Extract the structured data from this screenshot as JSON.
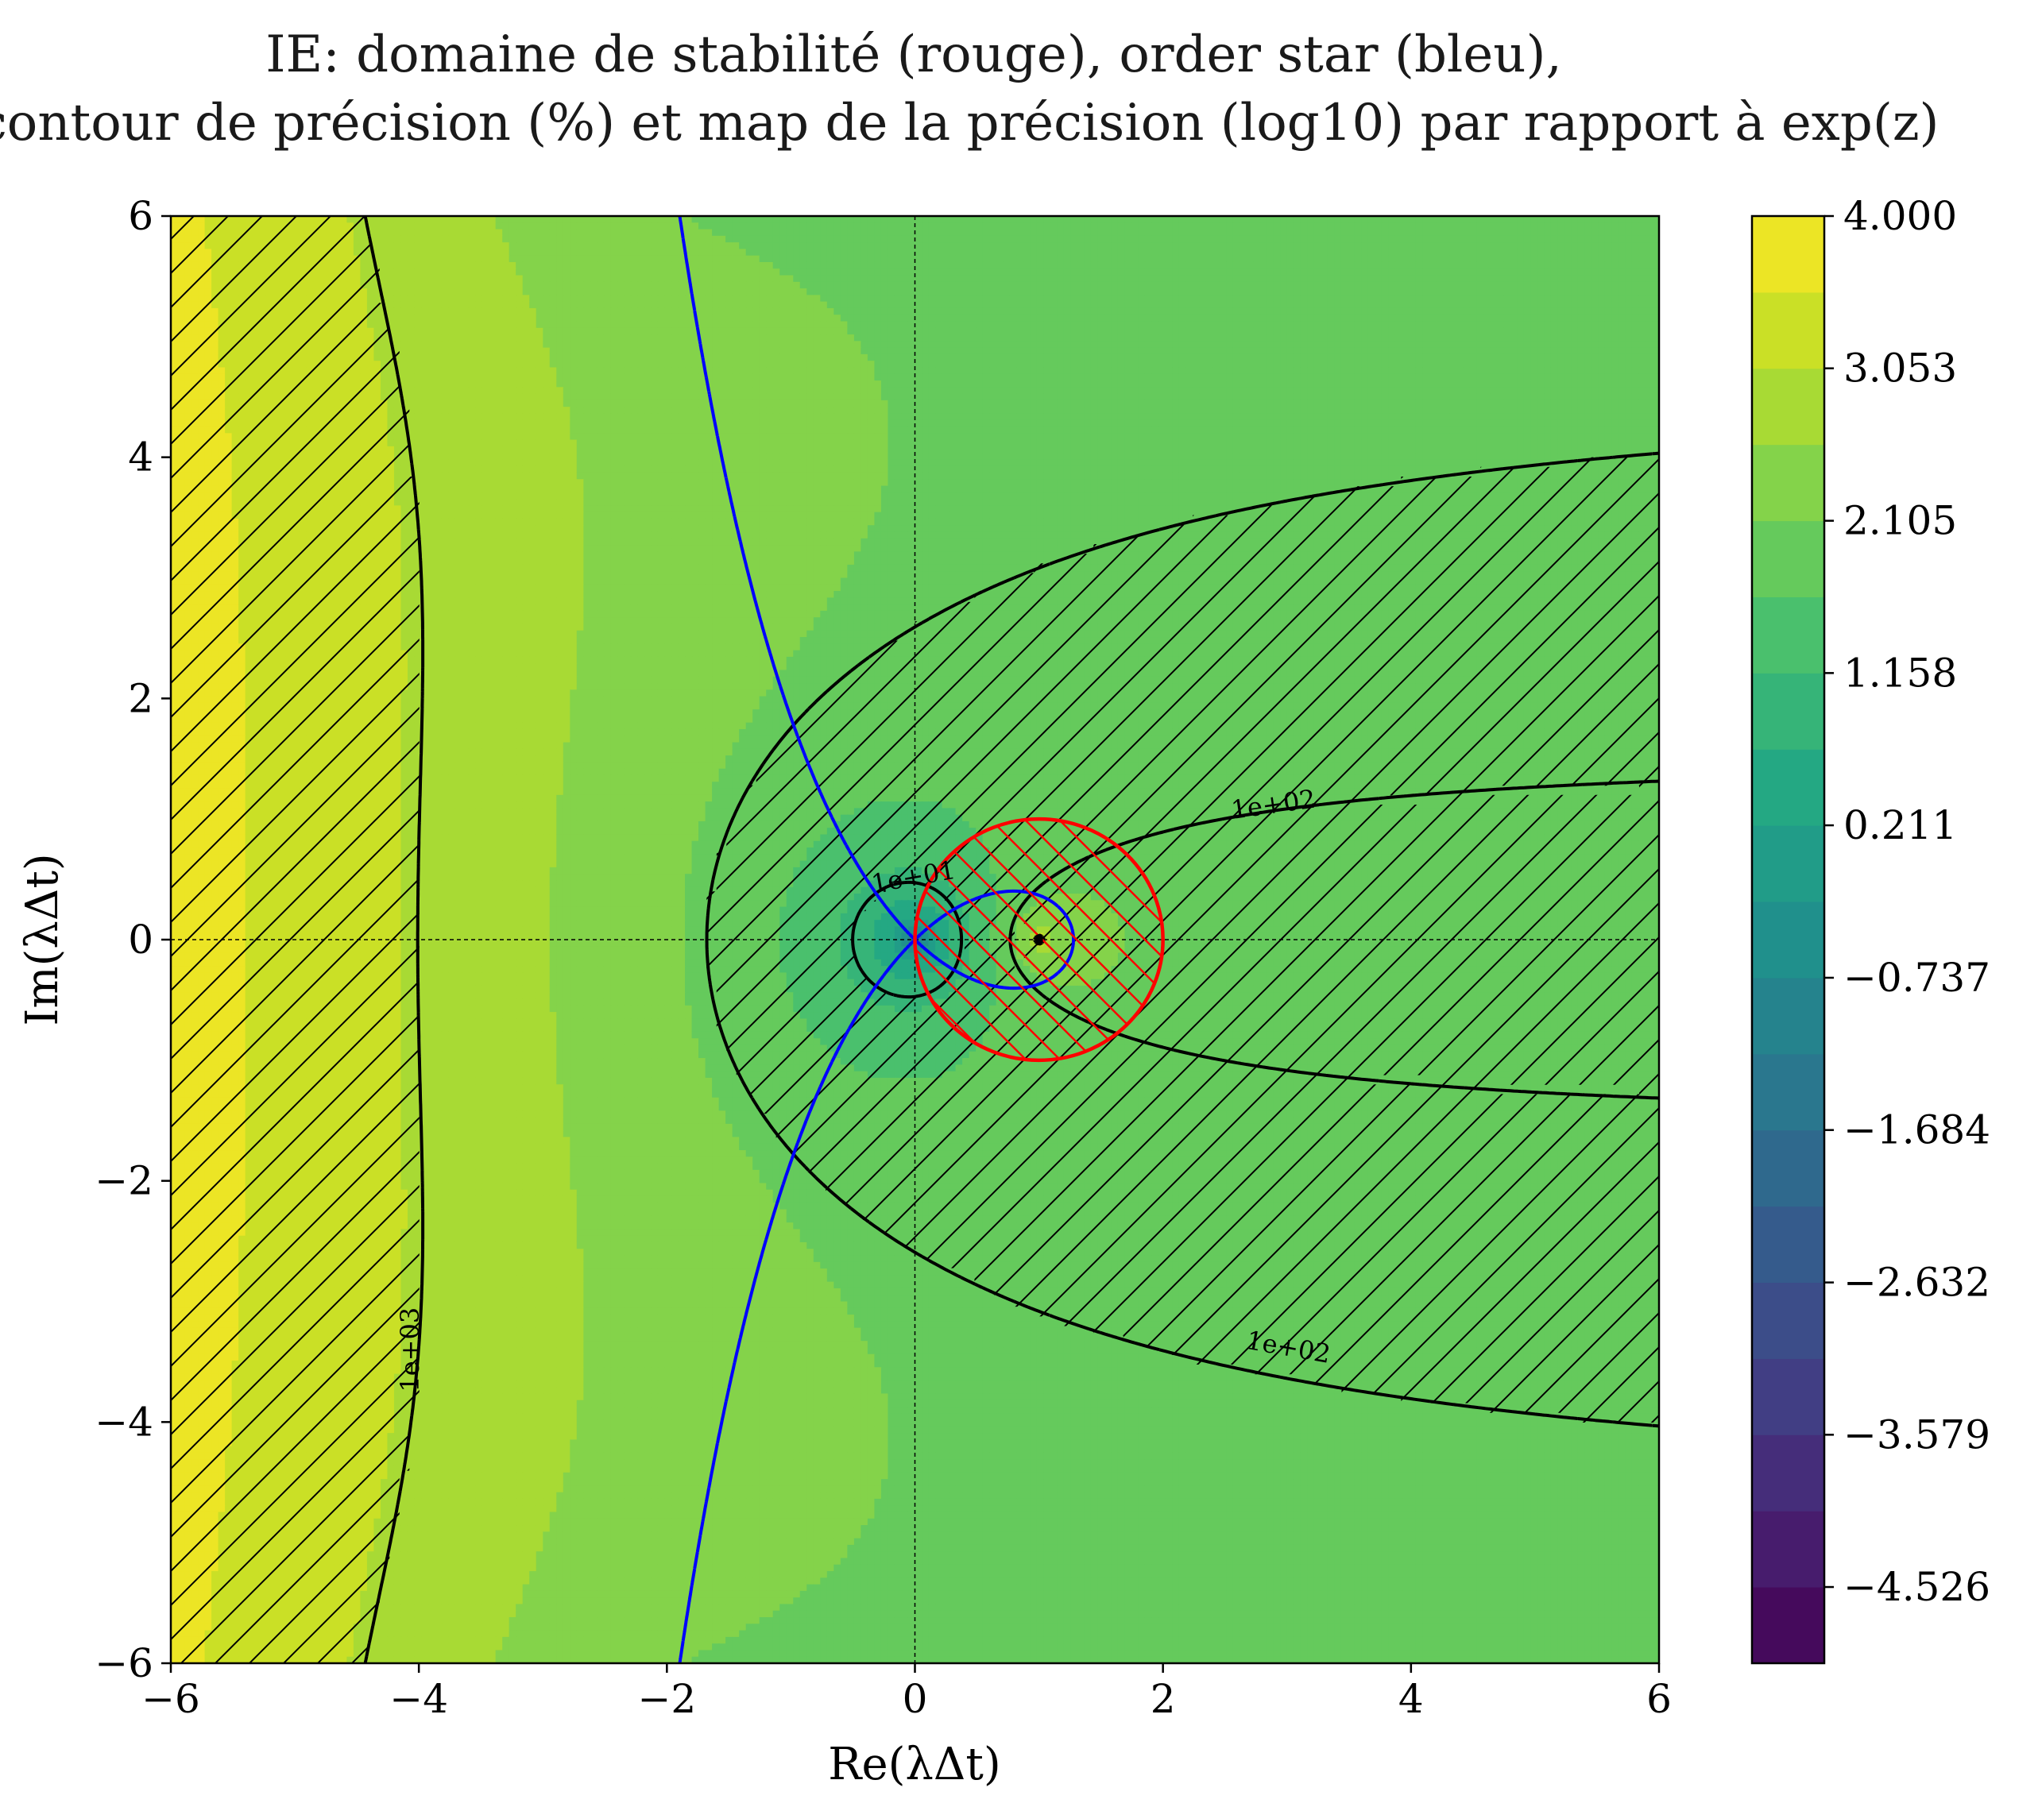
{
  "chart_data": {
    "type": "heatmap",
    "title_line1": "IE: domaine de stabilité (rouge), order star (bleu),",
    "title_line2": "iso-contour de précision (%) et map de la précision (log10) par rapport à exp(z)",
    "xlabel": "Re(λΔt)",
    "ylabel": "Im(λΔt)",
    "xlim": [
      -6,
      6
    ],
    "ylim": [
      -6,
      6
    ],
    "xticks": [
      -6,
      -4,
      -2,
      0,
      2,
      4,
      6
    ],
    "yticks": [
      -6,
      -4,
      -2,
      0,
      2,
      4,
      6
    ],
    "xtick_labels": [
      "−6",
      "−4",
      "−2",
      "0",
      "2",
      "4",
      "6"
    ],
    "ytick_labels": [
      "−6",
      "−4",
      "−2",
      "0",
      "2",
      "4",
      "6"
    ],
    "colorbar": {
      "colormap": "viridis",
      "range": [
        -5.0,
        4.0
      ],
      "levels": 19,
      "ticks": [
        4.0,
        3.053,
        2.105,
        1.158,
        0.211,
        -0.737,
        -1.684,
        -2.632,
        -3.579,
        -4.526
      ],
      "tick_labels": [
        "4.000",
        "3.053",
        "2.105",
        "1.158",
        "0.211",
        "−0.737",
        "−1.684",
        "−2.632",
        "−3.579",
        "−4.526"
      ]
    },
    "field": "log10 of relative error (%) of 1/(1−z) versus exp(z)",
    "iso_contours": [
      {
        "label": "1e+01",
        "value": 10
      },
      {
        "label": "1e+02",
        "value": 100
      },
      {
        "label": "1e+03",
        "value": 1000
      }
    ],
    "contour_labels": [
      "1e+01",
      "1e+02",
      "1e+02",
      "1e+03"
    ],
    "stability_domain": {
      "color": "#ff0000",
      "center": [
        1,
        0
      ],
      "radius": 1
    },
    "order_star": {
      "color": "#0000ff"
    },
    "hatch": "regions where the error exceeds the iso-contour thresholds (alternate bands)",
    "grid": false,
    "reference_lines": [
      "x = 0",
      "y = 0"
    ]
  }
}
